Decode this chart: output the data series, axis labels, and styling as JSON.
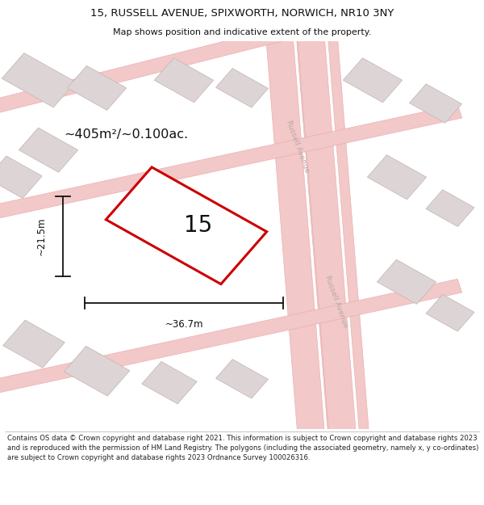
{
  "title_line1": "15, RUSSELL AVENUE, SPIXWORTH, NORWICH, NR10 3NY",
  "title_line2": "Map shows position and indicative extent of the property.",
  "footer_text": "Contains OS data © Crown copyright and database right 2021. This information is subject to Crown copyright and database rights 2023 and is reproduced with the permission of HM Land Registry. The polygons (including the associated geometry, namely x, y co-ordinates) are subject to Crown copyright and database rights 2023 Ordnance Survey 100026316.",
  "area_label": "~405m²/~0.100ac.",
  "plot_number": "15",
  "dim_width": "~36.7m",
  "dim_height": "~21.5m",
  "map_bg": "#f5eeee",
  "road_fill": "#f2c8c8",
  "road_edge": "#e8a8a8",
  "bld_fill": "#ddd5d5",
  "bld_edge": "#c8b8b8",
  "plot_fill": "#ffffff",
  "plot_edge": "#cc0000",
  "road_label_color": "#b8a8a8",
  "dim_color": "#111111",
  "text_color": "#111111",
  "title_fontsize": 9.5,
  "subtitle_fontsize": 8.0,
  "footer_fontsize": 6.1,
  "area_fontsize": 11.5,
  "plot_num_fontsize": 20,
  "dim_fontsize": 8.5,
  "road_label_fontsize": 6.5
}
